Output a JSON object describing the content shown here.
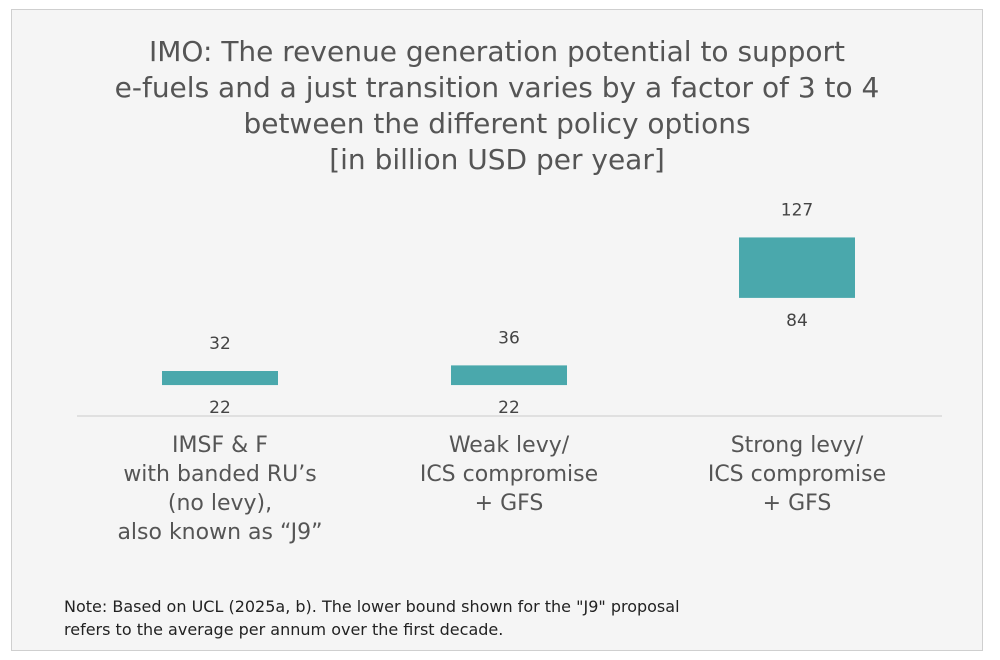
{
  "chart_data": {
    "type": "bar",
    "subtype": "floating-range",
    "title": "IMO: The revenue generation potential to support\ne-fuels and a just transition varies by a factor of 3 to 4\nbetween the different policy options\n[in billion USD per year]",
    "categories": [
      [
        "IMSF & F",
        "with banded RU’s",
        "(no levy),",
        "also known as “J9”"
      ],
      [
        "Weak levy/",
        "ICS compromise",
        "+ GFS"
      ],
      [
        "Strong levy/",
        "ICS compromise",
        "+ GFS"
      ]
    ],
    "series": [
      {
        "name": "lower",
        "values": [
          22,
          22,
          84
        ]
      },
      {
        "name": "upper",
        "values": [
          32,
          36,
          127
        ]
      }
    ],
    "ylim": [
      0,
      140
    ],
    "xlabel": "",
    "ylabel": "",
    "bar_color": "#4aa8ac",
    "grid": false
  },
  "note": "Note: Based on UCL (2025a, b). The lower bound shown for the \"J9\" proposal\nrefers to the average per annum over the first decade."
}
